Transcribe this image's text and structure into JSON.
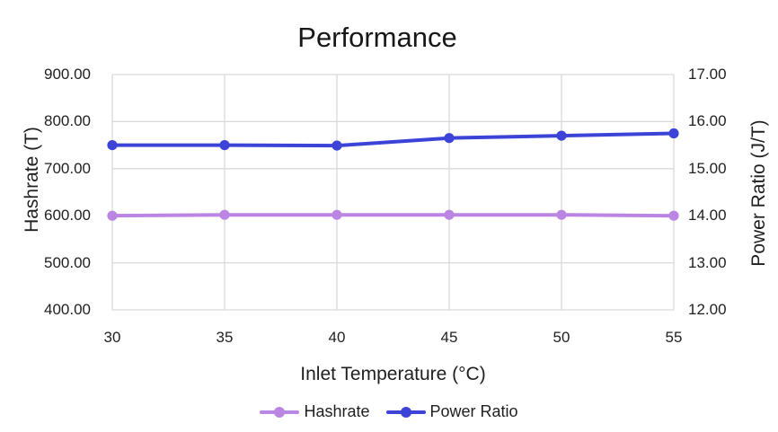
{
  "chart_data": {
    "type": "line",
    "title": "Performance",
    "xlabel": "Inlet Temperature (°C)",
    "grid_color": "#d9d9d9",
    "x_axis": {
      "min": 30,
      "max": 55,
      "values": [
        30,
        35,
        40,
        45,
        50,
        55
      ],
      "tick_labels": [
        "30",
        "35",
        "40",
        "45",
        "50",
        "55"
      ]
    },
    "y_left": {
      "label": "Hashrate (T)",
      "min": 400,
      "max": 900,
      "tick_values": [
        400,
        500,
        600,
        700,
        800,
        900
      ],
      "tick_labels": [
        "400.00",
        "500.00",
        "600.00",
        "700.00",
        "800.00",
        "900.00"
      ]
    },
    "y_right": {
      "label": "Power Ratio (J/T)",
      "min": 12,
      "max": 17,
      "tick_values": [
        12,
        13,
        14,
        15,
        16,
        17
      ],
      "tick_labels": [
        "12.00",
        "13.00",
        "14.00",
        "15.00",
        "16.00",
        "17.00"
      ]
    },
    "series": [
      {
        "name": "Hashrate",
        "axis": "left",
        "color": "#bb85e3",
        "values": [
          600,
          602,
          602,
          602,
          602,
          600
        ]
      },
      {
        "name": "Power Ratio",
        "axis": "right",
        "color": "#3b44d6",
        "values": [
          15.5,
          15.5,
          15.49,
          15.65,
          15.7,
          15.75
        ]
      }
    ],
    "legend_position": "bottom"
  }
}
